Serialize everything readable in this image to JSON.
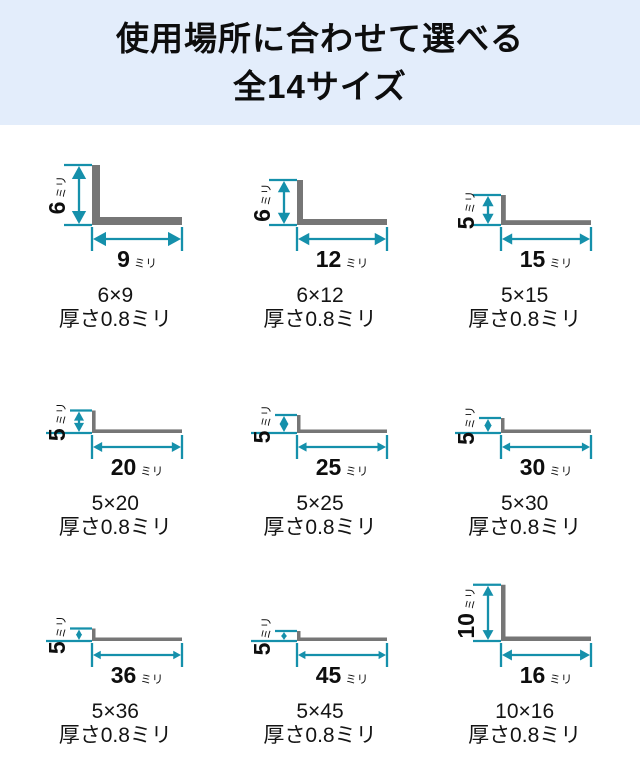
{
  "header": {
    "title_line1": "使用場所に合わせて選べる",
    "title_line2": "全14サイズ"
  },
  "unit": "ミリ",
  "colors": {
    "banner_bg": "#e3edfb",
    "bar_gray": "#767676",
    "dimension_teal": "#1590ab",
    "title_text": "#0d0d0d",
    "caption_text": "#141414"
  },
  "items": [
    {
      "height_mm": 6,
      "width_mm": 9,
      "size_label": "6×9",
      "thickness_label": "厚さ0.8ミリ"
    },
    {
      "height_mm": 6,
      "width_mm": 12,
      "size_label": "6×12",
      "thickness_label": "厚さ0.8ミリ"
    },
    {
      "height_mm": 5,
      "width_mm": 15,
      "size_label": "5×15",
      "thickness_label": "厚さ0.8ミリ"
    },
    {
      "height_mm": 5,
      "width_mm": 20,
      "size_label": "5×20",
      "thickness_label": "厚さ0.8ミリ"
    },
    {
      "height_mm": 5,
      "width_mm": 25,
      "size_label": "5×25",
      "thickness_label": "厚さ0.8ミリ"
    },
    {
      "height_mm": 5,
      "width_mm": 30,
      "size_label": "5×30",
      "thickness_label": "厚さ0.8ミリ"
    },
    {
      "height_mm": 5,
      "width_mm": 36,
      "size_label": "5×36",
      "thickness_label": "厚さ0.8ミリ"
    },
    {
      "height_mm": 5,
      "width_mm": 45,
      "size_label": "5×45",
      "thickness_label": "厚さ0.8ミリ"
    },
    {
      "height_mm": 10,
      "width_mm": 16,
      "size_label": "10×16",
      "thickness_label": "厚さ0.8ミリ"
    }
  ]
}
